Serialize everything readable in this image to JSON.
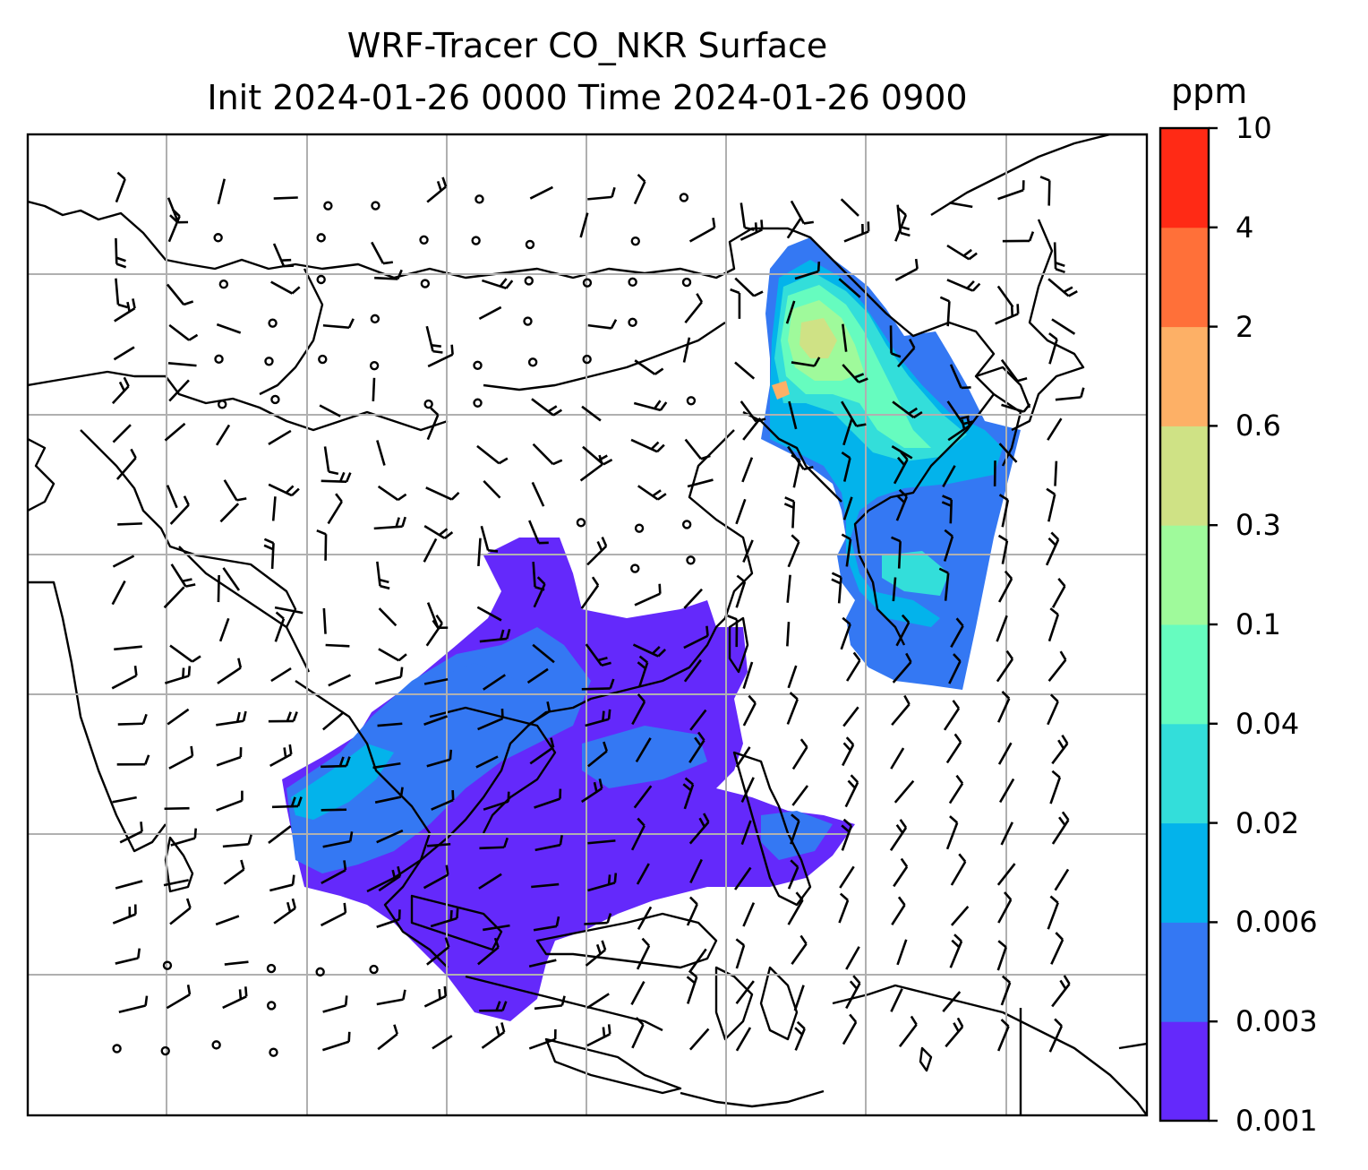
{
  "title_line1": "WRF-Tracer CO_NKR Surface",
  "title_line2": "Init 2024-01-26 0000 Time 2024-01-26 0900",
  "colorbar": {
    "label": "ppm",
    "levels": [
      "0.001",
      "0.003",
      "0.006",
      "0.02",
      "0.04",
      "0.1",
      "0.3",
      "0.6",
      "2",
      "4",
      "10"
    ],
    "colors": [
      "#6429fb",
      "#3478f3",
      "#03b3eb",
      "#33deda",
      "#66fcbf",
      "#9ffa9b",
      "#cfe285",
      "#fdb066",
      "#ff7039",
      "#ff2a15"
    ]
  }
}
